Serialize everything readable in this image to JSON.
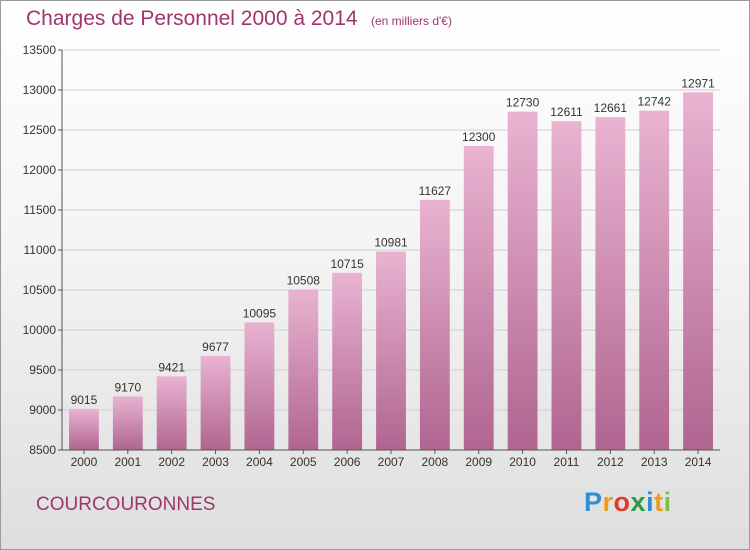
{
  "header": {
    "title": "Charges de Personnel 2000 à 2014",
    "unit_note": "(en milliers d'€)"
  },
  "footer": {
    "city": "COURCOURONNES",
    "logo": {
      "letters": [
        "P",
        "r",
        "o",
        "x",
        "i",
        "t",
        "i"
      ],
      "colors": [
        "#2f8fd5",
        "#f39a1a",
        "#e03a2c",
        "#2a9d3a",
        "#2f8fd5",
        "#f39a1a",
        "#7cc242"
      ]
    }
  },
  "colors": {
    "bar_fill": "#d890b8",
    "bar_top": "#e9b3d1",
    "bar_bottom": "#b06590",
    "text_accent": "#a0356d",
    "grid": "#ffffff"
  },
  "chart_data": {
    "type": "bar",
    "title": "Charges de Personnel 2000 à 2014",
    "subtitle": "(en milliers d'€)",
    "xlabel": "",
    "ylabel": "",
    "categories": [
      "2000",
      "2001",
      "2002",
      "2003",
      "2004",
      "2005",
      "2006",
      "2007",
      "2008",
      "2009",
      "2010",
      "2011",
      "2012",
      "2013",
      "2014"
    ],
    "values": [
      9015,
      9170,
      9421,
      9677,
      10095,
      10508,
      10715,
      10981,
      11627,
      12300,
      12730,
      12611,
      12661,
      12742,
      12971
    ],
    "ylim": [
      8500,
      13500
    ],
    "yticks": [
      8500,
      9000,
      9500,
      10000,
      10500,
      11000,
      11500,
      12000,
      12500,
      13000,
      13500
    ],
    "grid": true,
    "data_labels": true
  }
}
